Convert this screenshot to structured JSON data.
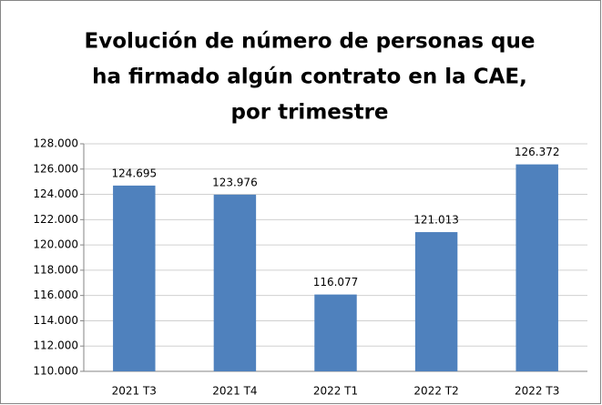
{
  "chart_data": {
    "type": "bar",
    "title": [
      "Evolución de número de personas que",
      "ha firmado algún contrato en la CAE,",
      "por trimestre"
    ],
    "categories": [
      "2021 T3",
      "2021 T4",
      "2022 T1",
      "2022 T2",
      "2022 T3"
    ],
    "values": [
      124695,
      123976,
      116077,
      121013,
      126372
    ],
    "value_labels": [
      "124.695",
      "123.976",
      "116.077",
      "121.013",
      "126.372"
    ],
    "color": "#4f81bd",
    "ylim": [
      110000,
      128000
    ],
    "yticks": [
      {
        "value": 110000,
        "label": "110.000"
      },
      {
        "value": 112000,
        "label": "112.000"
      },
      {
        "value": 114000,
        "label": "114.000"
      },
      {
        "value": 116000,
        "label": "116.000"
      },
      {
        "value": 118000,
        "label": "118.000"
      },
      {
        "value": 120000,
        "label": "120.000"
      },
      {
        "value": 122000,
        "label": "122.000"
      },
      {
        "value": 124000,
        "label": "124.000"
      },
      {
        "value": 126000,
        "label": "126.000"
      },
      {
        "value": 128000,
        "label": "128.000"
      }
    ],
    "grid": true
  }
}
